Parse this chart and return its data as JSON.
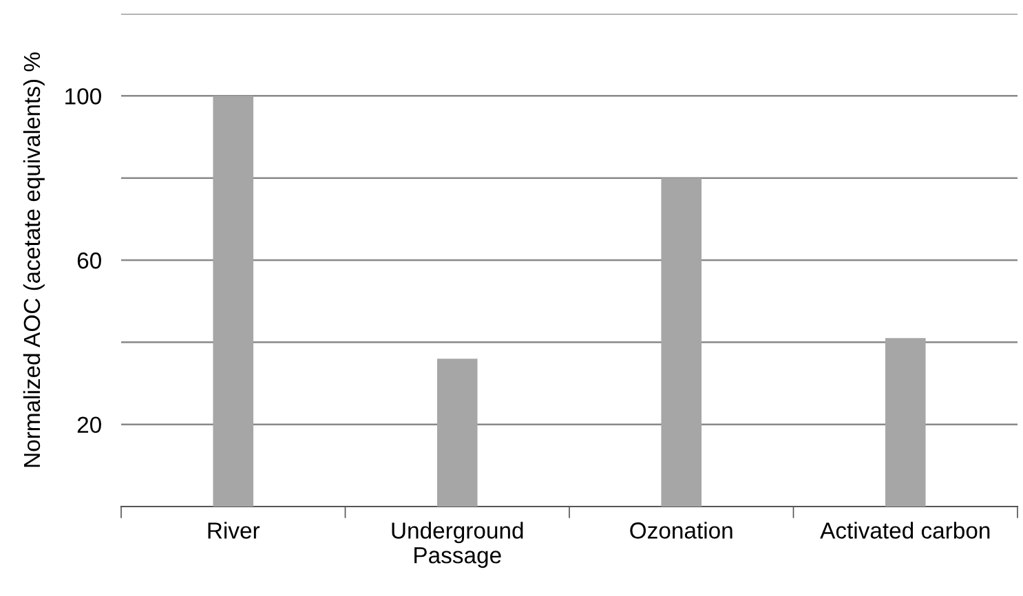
{
  "chart_data": {
    "type": "bar",
    "ylabel": "Normalized AOC (acetate equivalents) %",
    "categories": [
      "River",
      "Underground\nPassage",
      "Ozonation",
      "Activated carbon"
    ],
    "values": [
      100,
      36,
      80,
      41
    ],
    "color": "#a6a6a6",
    "ylim": [
      0,
      120
    ],
    "yticks": [
      20,
      {
        "value": 40,
        "label": null
      },
      60,
      {
        "value": 80,
        "label": null
      },
      100,
      {
        "value": 120,
        "label": null
      }
    ],
    "grid": "y"
  }
}
